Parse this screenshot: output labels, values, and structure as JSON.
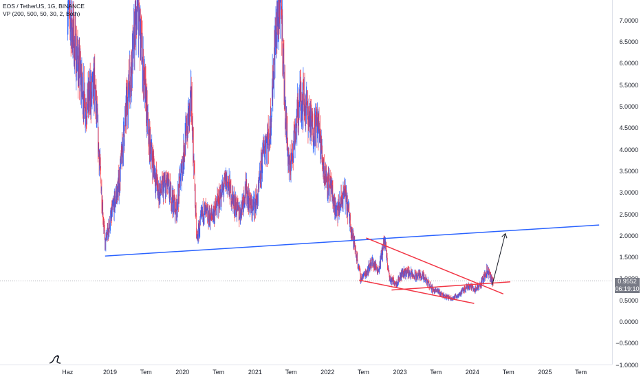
{
  "legend": {
    "symbol": "EOS / TetherUS, 1G, BINANCE",
    "indicator": "VP (200, 500, 50, 30, 2, Both)"
  },
  "price_axis": {
    "ticks": [
      "7.0000",
      "6.5000",
      "6.0000",
      "5.5000",
      "5.0000",
      "4.5000",
      "4.0000",
      "3.5000",
      "3.0000",
      "2.5000",
      "2.0000",
      "1.5000",
      "1.0000",
      "0.5000",
      "0.0000",
      "−0.5000",
      "−1.0000"
    ],
    "current_price": "0.9552",
    "countdown": "06:19:10"
  },
  "time_axis": {
    "ticks": [
      "Haz",
      "2019",
      "Tem",
      "2020",
      "Tem",
      "2021",
      "Tem",
      "2022",
      "Tem",
      "2023",
      "Tem",
      "2024",
      "Tem",
      "2025",
      "Tem"
    ]
  },
  "colors": {
    "candle_up": "#2962ff",
    "candle_down": "#f23645",
    "support_line": "#2962ff",
    "wedge_lines": "#f23645",
    "arrow": "#131722",
    "price_line": "#787b86"
  },
  "logo_icon": "tradingview-dino-icon",
  "chart_data": {
    "type": "line",
    "title": "EOS / TetherUS, 1G, BINANCE",
    "xlabel": "",
    "ylabel": "",
    "ylim": [
      -1.0,
      7.4
    ],
    "x_ticks": [
      "Haz",
      "2019",
      "Tem",
      "2020",
      "Tem",
      "2021",
      "Tem",
      "2022",
      "Tem",
      "2023",
      "Tem",
      "2024",
      "Tem",
      "2025",
      "Tem"
    ],
    "y_ticks": [
      7.0,
      6.5,
      6.0,
      5.5,
      5.0,
      4.5,
      4.0,
      3.5,
      3.0,
      2.5,
      2.0,
      1.5,
      1.0,
      0.5,
      0.0,
      -0.5,
      -1.0
    ],
    "current_price": 0.9552,
    "series": [
      {
        "x": [
          "2018-06-01",
          "2018-07-15",
          "2018-09-01",
          "2018-10-15",
          "2018-12-07",
          "2019-01-15",
          "2019-02-15",
          "2019-04-01",
          "2019-05-01",
          "2019-05-20",
          "2019-06-15",
          "2019-07-15",
          "2019-09-01",
          "2019-10-15",
          "2019-12-01",
          "2020-01-15",
          "2020-02-15",
          "2020-03-13",
          "2020-04-15",
          "2020-05-15",
          "2020-06-15",
          "2020-08-10",
          "2020-09-15",
          "2020-10-15",
          "2020-11-15",
          "2020-12-15",
          "2021-01-15",
          "2021-02-15",
          "2021-03-15",
          "2021-04-15",
          "2021-05-12",
          "2021-06-01",
          "2021-06-22",
          "2021-07-15",
          "2021-08-15",
          "2021-09-05",
          "2021-10-15",
          "2021-11-15",
          "2021-12-15",
          "2022-01-22",
          "2022-02-15",
          "2022-03-28",
          "2022-04-15",
          "2022-05-12",
          "2022-06-18",
          "2022-07-15",
          "2022-08-12",
          "2022-09-15",
          "2022-10-15",
          "2022-11-10",
          "2022-12-15",
          "2023-01-15",
          "2023-02-15",
          "2023-03-15",
          "2023-04-15",
          "2023-05-15",
          "2023-06-15",
          "2023-07-15",
          "2023-08-15",
          "2023-09-15",
          "2023-10-15",
          "2023-11-15",
          "2023-12-10",
          "2024-01-15",
          "2024-02-15",
          "2024-03-15",
          "2024-04-15"
        ],
        "y": [
          7.5,
          6.2,
          5.0,
          5.5,
          1.8,
          2.6,
          3.2,
          5.3,
          6.5,
          7.4,
          6.0,
          4.3,
          3.0,
          3.2,
          2.6,
          4.2,
          5.2,
          1.9,
          2.6,
          2.4,
          2.6,
          3.3,
          2.8,
          2.5,
          3.1,
          2.6,
          2.9,
          4.1,
          4.3,
          6.7,
          7.5,
          5.0,
          3.5,
          4.2,
          5.2,
          5.2,
          4.5,
          4.6,
          3.5,
          3.0,
          2.5,
          3.0,
          2.6,
          1.9,
          1.0,
          1.15,
          1.4,
          1.2,
          1.9,
          1.0,
          0.9,
          1.15,
          1.15,
          1.05,
          1.1,
          0.95,
          0.75,
          0.7,
          0.6,
          0.55,
          0.6,
          0.72,
          0.85,
          0.75,
          0.9,
          1.2,
          0.9
        ],
        "name": "EOS/USDT"
      }
    ],
    "drawings": [
      {
        "type": "trendline",
        "color": "#2962ff",
        "from": [
          "2018-12-07",
          1.53
        ],
        "to": [
          "2025-10-01",
          2.25
        ]
      },
      {
        "type": "trendline",
        "color": "#f23645",
        "from": [
          "2022-07-15",
          1.95
        ],
        "to": [
          "2024-06-05",
          0.65
        ]
      },
      {
        "type": "trendline",
        "color": "#f23645",
        "from": [
          "2022-06-10",
          0.97
        ],
        "to": [
          "2024-01-10",
          0.43
        ]
      },
      {
        "type": "trendline",
        "color": "#f23645",
        "from": [
          "2022-11-20",
          0.74
        ],
        "to": [
          "2024-07-10",
          0.93
        ]
      },
      {
        "type": "arrow",
        "color": "#131722",
        "from": [
          "2024-04-10",
          0.85
        ],
        "to": [
          "2024-06-15",
          2.05
        ]
      }
    ]
  }
}
